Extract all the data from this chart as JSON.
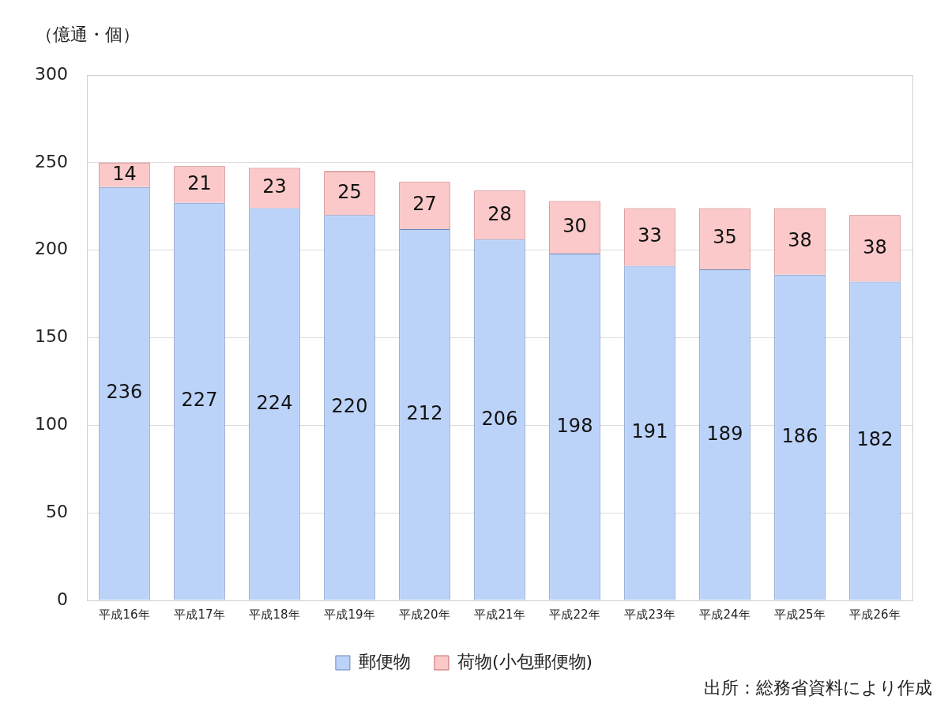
{
  "chart_data": {
    "type": "bar",
    "stacked": true,
    "ylabel": "（億通・個）",
    "categories": [
      "平成16年",
      "平成17年",
      "平成18年",
      "平成19年",
      "平成20年",
      "平成21年",
      "平成22年",
      "平成23年",
      "平成24年",
      "平成25年",
      "平成26年"
    ],
    "series": [
      {
        "name": "郵便物",
        "color": "#bcd3f9",
        "values": [
          236,
          227,
          224,
          220,
          212,
          206,
          198,
          191,
          189,
          186,
          182
        ]
      },
      {
        "name": "荷物(小包郵便物)",
        "color": "#fbc9c9",
        "values": [
          14,
          21,
          23,
          25,
          27,
          28,
          30,
          33,
          35,
          38,
          38
        ]
      }
    ],
    "ylim": [
      0,
      300
    ],
    "yticks": [
      0,
      50,
      100,
      150,
      200,
      250,
      300
    ],
    "grid": "y",
    "legend": "bottom",
    "data_labels": true,
    "annotations": [
      "出所：総務省資料により作成"
    ]
  }
}
